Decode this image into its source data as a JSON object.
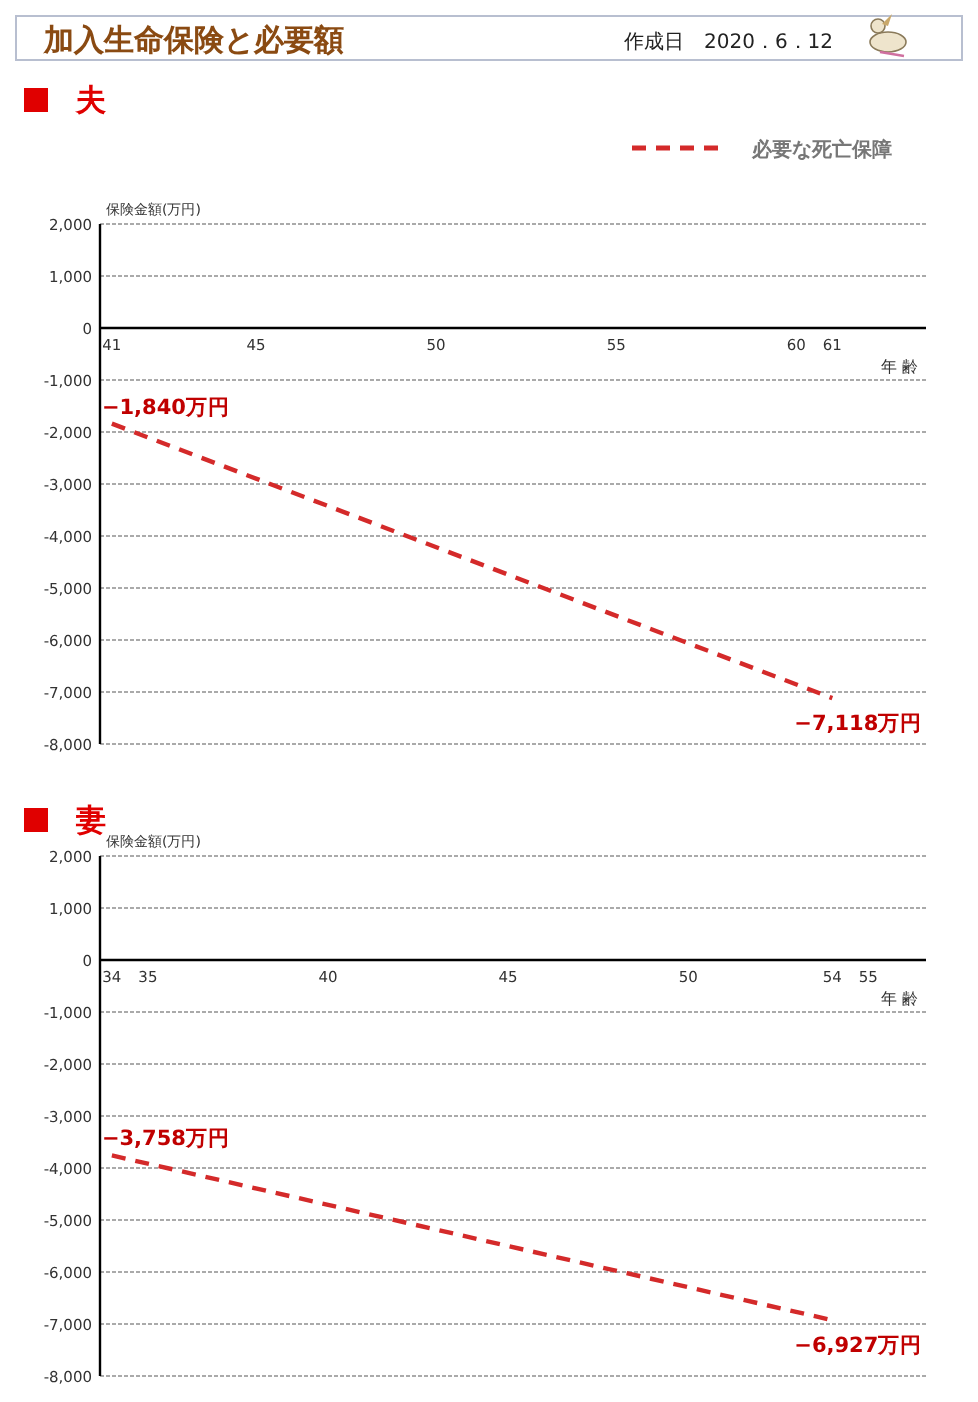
{
  "chart_data": [
    {
      "type": "other",
      "title": "加入生命保険と必要額",
      "annotations": [
        "作成日　2020．6．12"
      ]
    },
    {
      "type": "line",
      "title": "夫",
      "ylabel": "保険金額(万円)",
      "xlabel": "年 齢",
      "x": [
        41,
        61
      ],
      "series": [
        {
          "name": "必要な死亡保障",
          "color": "#d42a2a",
          "values": [
            -1840,
            -7118
          ],
          "value_labels": [
            "−1,840万円",
            "−7,118万円"
          ]
        }
      ],
      "xlim": [
        40.67,
        63.6
      ],
      "xticks": [
        41,
        45,
        50,
        55,
        60,
        61
      ],
      "ylim": [
        -8000,
        2000
      ],
      "yticks": [
        {
          "value": -8000,
          "label": "-8,000"
        },
        {
          "value": -7000,
          "label": "-7,000"
        },
        {
          "value": -6000,
          "label": "-6,000"
        },
        {
          "value": -5000,
          "label": "-5,000"
        },
        {
          "value": -4000,
          "label": "-4,000"
        },
        {
          "value": -3000,
          "label": "-3,000"
        },
        {
          "value": -2000,
          "label": "-2,000"
        },
        {
          "value": -1000,
          "label": "-1,000"
        },
        0,
        {
          "value": 1000,
          "label": "1,000"
        },
        {
          "value": 2000,
          "label": "2,000"
        }
      ],
      "grid": "y",
      "legend": "top right",
      "line_style": "dashed",
      "marker": "none"
    },
    {
      "type": "line",
      "title": "妻",
      "ylabel": "保険金額(万円)",
      "xlabel": "年 齢",
      "x": [
        34,
        54
      ],
      "series": [
        {
          "color": "#d42a2a",
          "values": [
            -3758,
            -6927
          ],
          "value_labels": [
            "−3,758万円",
            "−6,927万円"
          ]
        }
      ],
      "xlim": [
        33.67,
        56.6
      ],
      "xticks": [
        34,
        35,
        40,
        45,
        50,
        54,
        55
      ],
      "ylim": [
        -8000,
        2000
      ],
      "yticks": [
        {
          "value": -8000,
          "label": "-8,000"
        },
        {
          "value": -7000,
          "label": "-7,000"
        },
        {
          "value": -6000,
          "label": "-6,000"
        },
        {
          "value": -5000,
          "label": "-5,000"
        },
        {
          "value": -4000,
          "label": "-4,000"
        },
        {
          "value": -3000,
          "label": "-3,000"
        },
        {
          "value": -2000,
          "label": "-2,000"
        },
        {
          "value": -1000,
          "label": "-1,000"
        },
        0,
        {
          "value": 1000,
          "label": "1,000"
        },
        {
          "value": 2000,
          "label": "2,000"
        }
      ],
      "grid": "y",
      "line_style": "dashed",
      "marker": "none"
    }
  ]
}
